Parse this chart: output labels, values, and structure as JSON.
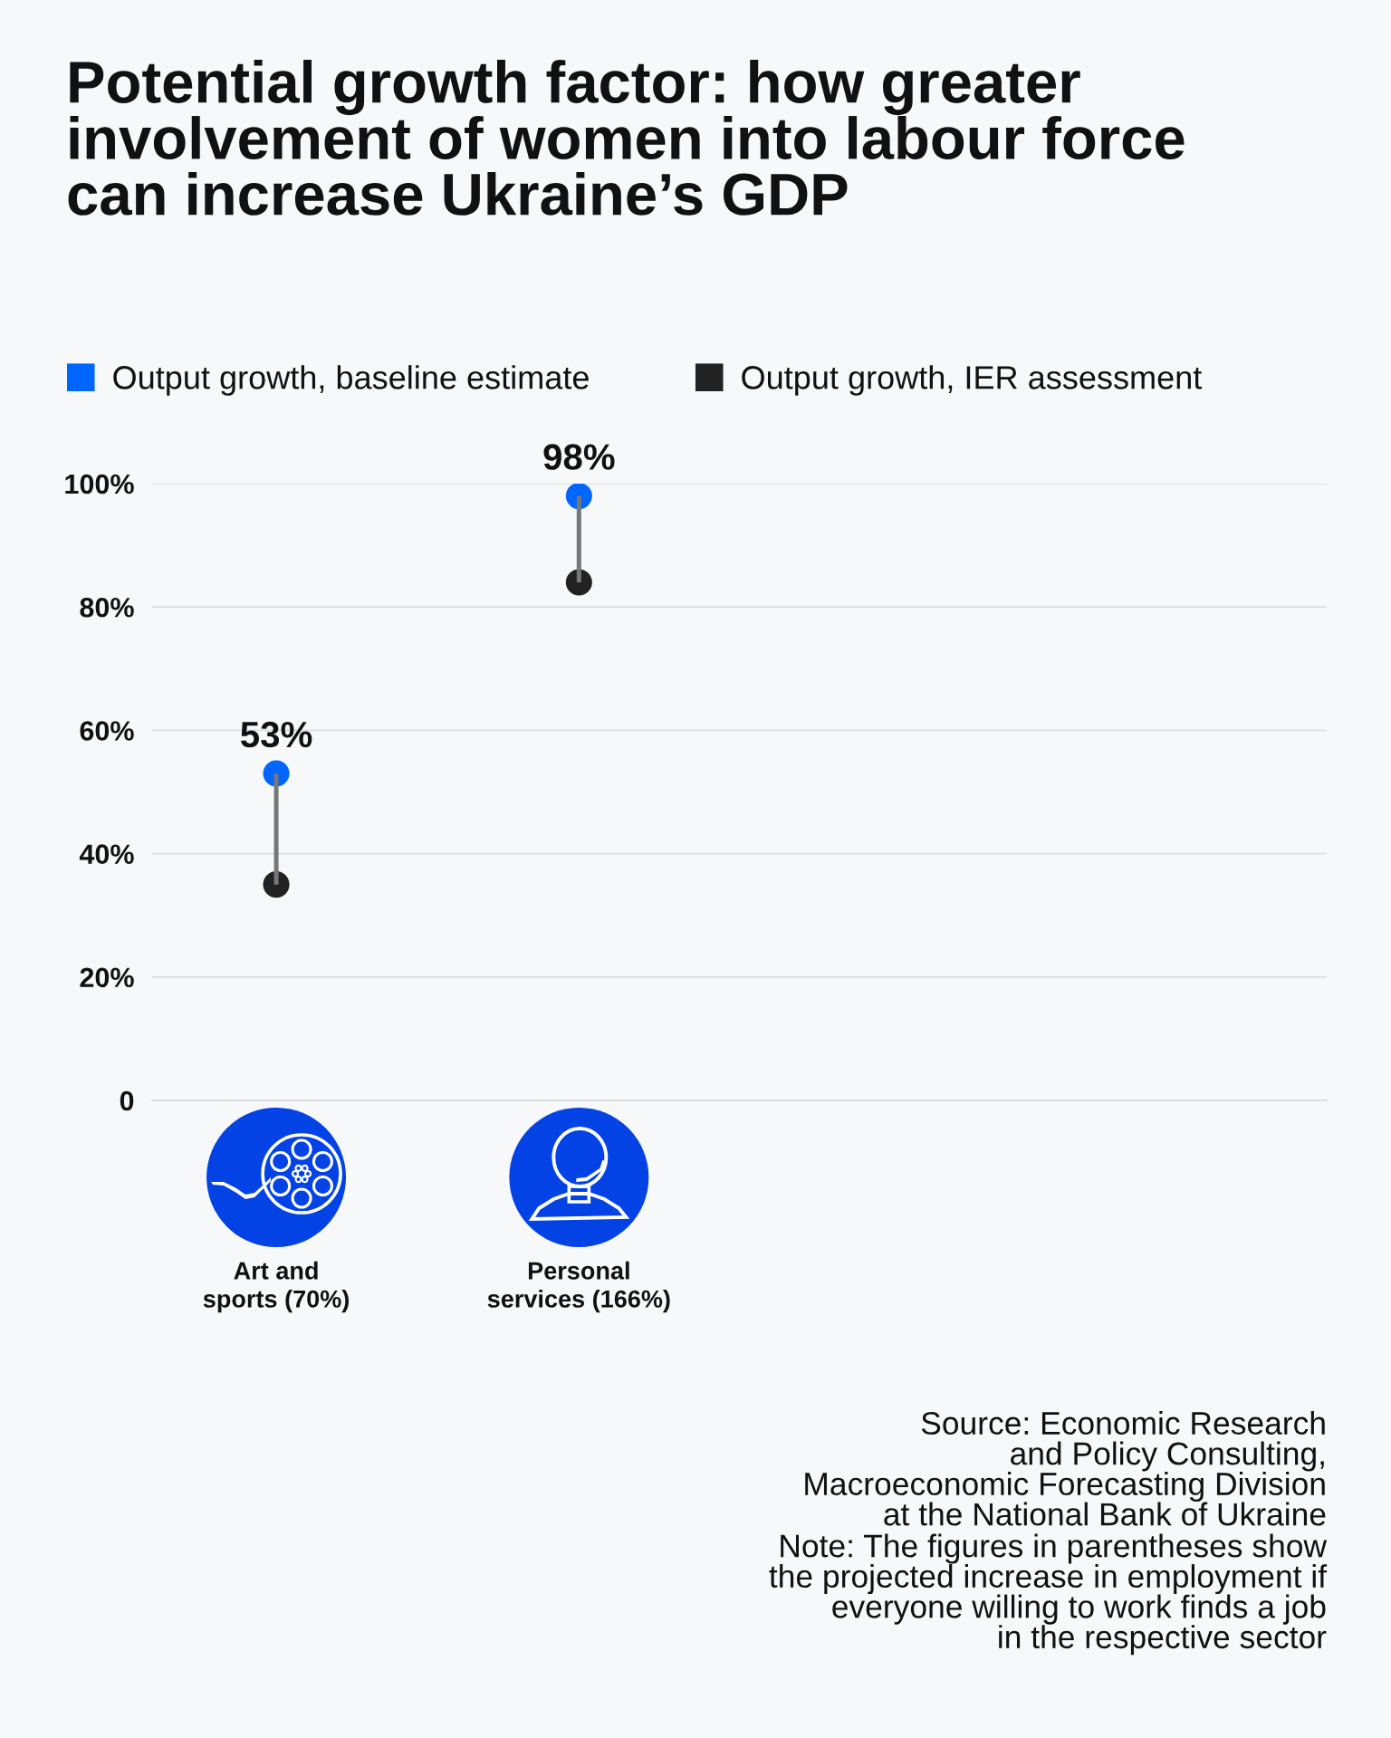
{
  "chart_data": {
    "type": "scatter",
    "title": "Potential growth factor: how greater\ninvolvement of women into labour force\ncan increase Ukraine’s GDP",
    "categories": [
      "Art and\nsports (70%)",
      "Personal\nservices (166%)"
    ],
    "series": [
      {
        "type": "bar",
        "color": "#777777",
        "base": [
          35,
          84
        ],
        "values": [
          18,
          14
        ]
      },
      {
        "name": "Output growth, baseline estimate",
        "color": "#0066ff",
        "values": [
          53,
          98
        ],
        "value_labels": [
          "53%",
          "98%"
        ]
      },
      {
        "name": "Output growth, IER assessment",
        "color": "#222222",
        "values": [
          35,
          84
        ]
      }
    ],
    "ylim": [
      0,
      100
    ],
    "yticks": [
      0,
      {
        "value": 20,
        "label": "20%"
      },
      {
        "value": 40,
        "label": "40%"
      },
      {
        "value": 60,
        "label": "60%"
      },
      {
        "value": 80,
        "label": "80%"
      },
      {
        "value": 100,
        "label": "100%"
      }
    ],
    "grid": "y",
    "legend": "top",
    "marker": "circle",
    "annotations": [
      "Source: Economic Research\nand Policy Consulting,\nMacroeconomic Forecasting Division\nat the National Bank of Ukraine",
      "Note: The figures in parentheses show\nthe projected increase in employment if\neveryone willing to work finds a job\nin the respective sector"
    ]
  }
}
